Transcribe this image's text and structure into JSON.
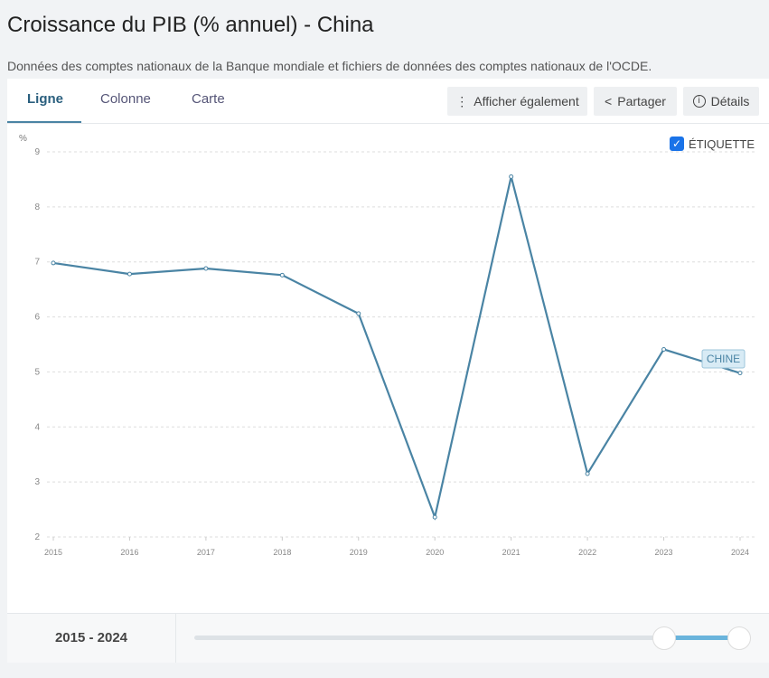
{
  "title": "Croissance du PIB (% annuel) - China",
  "subtitle": "Données des comptes nationaux de la Banque mondiale et fichiers de données des comptes nationaux de l'OCDE.",
  "tabs": [
    {
      "label": "Ligne",
      "active": true
    },
    {
      "label": "Colonne"
    },
    {
      "label": "Carte"
    }
  ],
  "buttons": {
    "also": "Afficher également",
    "share": "Partager",
    "details": "Détails"
  },
  "label_toggle": {
    "label": "ÉTIQUETTE",
    "checked": true
  },
  "accent": "#4a84a4",
  "chart_data": {
    "type": "line",
    "ylabel": "%",
    "ylim": [
      2,
      9
    ],
    "yticks": [
      2,
      3,
      4,
      5,
      6,
      7,
      8,
      9
    ],
    "x": [
      2015,
      2016,
      2017,
      2018,
      2019,
      2020,
      2021,
      2022,
      2023,
      2024
    ],
    "series": [
      {
        "name": "CHINE",
        "values": [
          6.98,
          6.78,
          6.88,
          6.76,
          6.06,
          2.36,
          8.55,
          3.15,
          5.41,
          4.98
        ]
      }
    ],
    "grid": true
  },
  "footer": {
    "range": "2015 - 2024",
    "slider": {
      "min": 2015,
      "max": 2024,
      "start": 2023,
      "end": 2024
    }
  }
}
